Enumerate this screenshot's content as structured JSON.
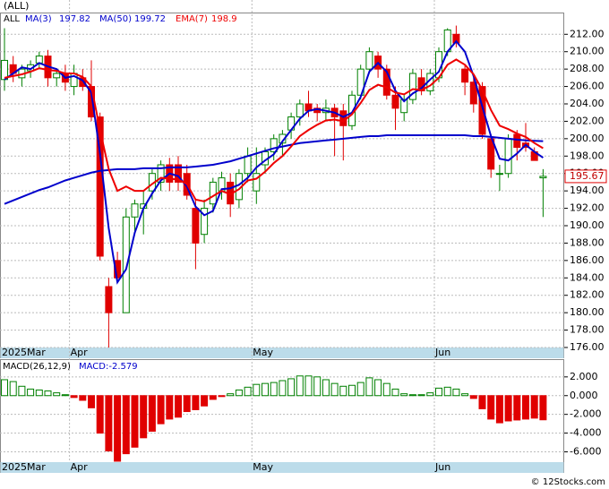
{
  "chart_data": [
    {
      "type": "candlestick",
      "title": "(ALL)",
      "symbol": "ALL",
      "categories": [
        "2025Mar",
        null,
        null,
        null,
        null,
        null,
        null,
        null,
        "Apr",
        null,
        null,
        null,
        null,
        null,
        null,
        null,
        null,
        null,
        null,
        null,
        null,
        null,
        null,
        null,
        null,
        null,
        null,
        null,
        null,
        "May",
        null,
        null,
        null,
        null,
        null,
        null,
        null,
        null,
        null,
        null,
        null,
        null,
        null,
        null,
        null,
        null,
        null,
        null,
        null,
        null,
        "Jun",
        null,
        null,
        null,
        null,
        null,
        null,
        null,
        null,
        null,
        null,
        null,
        null
      ],
      "open": [
        206.8,
        208.5,
        207,
        207.8,
        208.7,
        209.5,
        207,
        207.5,
        206,
        207,
        206,
        202.5,
        183,
        186,
        180,
        191,
        192,
        194,
        195,
        197,
        197,
        196,
        192,
        189,
        192.5,
        194,
        195,
        193,
        196,
        194,
        197,
        198.5,
        199.5,
        201,
        202.5,
        204,
        203.5,
        203,
        203.5,
        203.2,
        201.5,
        205,
        208,
        209.5,
        208,
        205,
        203,
        204.5,
        207,
        205.5,
        207,
        210,
        212,
        208,
        206.5,
        206,
        200,
        196,
        196,
        200.5,
        199.5,
        198.5,
        195.5
      ],
      "high": [
        212.7,
        209.5,
        208.5,
        209,
        210,
        210.2,
        208,
        208.5,
        208.5,
        208,
        209,
        203,
        184,
        187,
        192,
        193,
        194,
        196.5,
        197.5,
        197.8,
        198,
        197,
        193,
        193,
        195.5,
        196.2,
        196,
        196.5,
        199,
        199,
        199,
        200.5,
        201,
        203,
        204.5,
        205.5,
        204,
        204.5,
        204,
        204,
        205.5,
        208.5,
        210.5,
        210,
        208.5,
        206,
        205,
        208,
        208,
        208,
        210.5,
        212.7,
        213,
        208.5,
        207,
        206.5,
        200.5,
        197,
        200.5,
        201,
        201.8,
        199,
        196.5
      ],
      "low": [
        205.5,
        206.5,
        206,
        207,
        208,
        206,
        206,
        205.5,
        205,
        205.5,
        202,
        186,
        176,
        183.5,
        180,
        189,
        189,
        193,
        194,
        194,
        194,
        193,
        185,
        188,
        191.5,
        193,
        191,
        192,
        195,
        192.5,
        196,
        197.5,
        198,
        200,
        201.5,
        202.5,
        202,
        202,
        198,
        197.5,
        201,
        204.5,
        207.5,
        207,
        204.5,
        201,
        202,
        204,
        205,
        205,
        206.5,
        209.5,
        210.5,
        205,
        203,
        200,
        195.5,
        194,
        195.5,
        197.5,
        198.5,
        197.5,
        191
      ],
      "close": [
        209,
        207.5,
        208,
        208.5,
        209.5,
        207,
        207.5,
        206.5,
        207.5,
        206,
        202.5,
        186.5,
        180,
        184,
        191,
        192.5,
        192.5,
        196,
        197,
        195,
        195,
        193.5,
        188,
        192,
        195,
        195.5,
        192.5,
        196,
        198,
        196,
        198.5,
        200,
        200.5,
        202.5,
        204,
        203.2,
        203,
        203.5,
        202.5,
        201.5,
        205,
        208,
        210,
        208,
        205,
        203.5,
        204.5,
        207.5,
        205.5,
        207.5,
        210,
        212.5,
        211,
        206.5,
        204,
        200.5,
        196.5,
        196,
        200,
        199,
        199,
        197.5,
        195.67
      ],
      "up_color": "#008000",
      "down_color": "#e00000",
      "series": [
        {
          "name": "MA(3)",
          "color": "#0000cc",
          "last": 197.82,
          "values": [
            206.8,
            207.5,
            208.2,
            208,
            208.7,
            208.3,
            208,
            207,
            207.2,
            206.7,
            205.3,
            198.3,
            189.7,
            183.5,
            185,
            189.2,
            192,
            193.7,
            195.2,
            196,
            195.7,
            194.5,
            192.2,
            191.2,
            191.7,
            194.2,
            194.3,
            194.7,
            195.5,
            196.7,
            197.5,
            198.2,
            199.7,
            201,
            202.3,
            203.2,
            203.4,
            203.2,
            203,
            202.5,
            203,
            204.8,
            207.7,
            208.7,
            207.7,
            205.5,
            204.3,
            205.2,
            205.8,
            206.8,
            207.7,
            210,
            211.2,
            210,
            207.2,
            203.7,
            200.3,
            197.7,
            197.5,
            198.3,
            199.3,
            198.5,
            197.82
          ]
        },
        {
          "name": "MA(50)",
          "color": "#0000cc",
          "last": 199.72,
          "values": [
            192.5,
            192.9,
            193.3,
            193.7,
            194.1,
            194.4,
            194.8,
            195.2,
            195.5,
            195.8,
            196.1,
            196.3,
            196.4,
            196.5,
            196.5,
            196.5,
            196.6,
            196.6,
            196.6,
            196.7,
            196.7,
            196.7,
            196.8,
            196.9,
            197.0,
            197.2,
            197.4,
            197.7,
            198.0,
            198.3,
            198.6,
            198.9,
            199.1,
            199.3,
            199.5,
            199.6,
            199.7,
            199.8,
            199.9,
            200.0,
            200.1,
            200.2,
            200.3,
            200.3,
            200.4,
            200.4,
            200.4,
            200.4,
            200.4,
            200.4,
            200.4,
            200.4,
            200.4,
            200.4,
            200.3,
            200.3,
            200.2,
            200.1,
            200.0,
            199.9,
            199.8,
            199.75,
            199.72
          ]
        },
        {
          "name": "EMA(7)",
          "color": "#ee0000",
          "last": 198.9,
          "values": [
            207,
            207.2,
            207.4,
            207.7,
            208.1,
            207.9,
            207.8,
            207.5,
            207.5,
            207.1,
            206,
            201,
            196.5,
            194,
            194.5,
            194,
            194,
            194.8,
            195.5,
            195.4,
            195.3,
            194.8,
            193,
            192.8,
            193.4,
            194,
            193.6,
            194.2,
            195.2,
            195.4,
            196.2,
            197.2,
            198,
            199.1,
            200.3,
            201,
            201.6,
            202.1,
            202.2,
            202,
            202.8,
            204.1,
            205.6,
            206.2,
            205.9,
            205.3,
            205.1,
            205.7,
            205.6,
            206.1,
            207,
            208.5,
            209.1,
            208.5,
            207.4,
            205.6,
            203.3,
            201.5,
            201.1,
            200.6,
            200.2,
            199.5,
            198.9
          ]
        }
      ],
      "ylim": [
        176,
        214.5
      ],
      "yticks": [
        {
          "value": 176,
          "label": "176.00"
        },
        {
          "value": 178,
          "label": "178.00"
        },
        {
          "value": 180,
          "label": "180.00"
        },
        {
          "value": 182,
          "label": "182.00"
        },
        {
          "value": 184,
          "label": "184.00"
        },
        {
          "value": 186,
          "label": "186.00"
        },
        {
          "value": 188,
          "label": "188.00"
        },
        {
          "value": 190,
          "label": "190.00"
        },
        {
          "value": 192,
          "label": "192.00"
        },
        {
          "value": 194,
          "label": "194.00"
        },
        {
          "value": 196,
          "label": "196.00"
        },
        {
          "value": 198,
          "label": "198.00"
        },
        {
          "value": 200,
          "label": "200.00"
        },
        {
          "value": 202,
          "label": "202.00"
        },
        {
          "value": 204,
          "label": "204.00"
        },
        {
          "value": 206,
          "label": "206.00"
        },
        {
          "value": 208,
          "label": "208.00"
        },
        {
          "value": 210,
          "label": "210.00"
        },
        {
          "value": 212,
          "label": "212.00"
        }
      ],
      "grid": true
    },
    {
      "type": "bar",
      "title": "MACD(26,12,9)",
      "current_label": "MACD:-2.579",
      "categories": [
        "2025Mar",
        null,
        null,
        null,
        null,
        null,
        null,
        null,
        "Apr",
        null,
        null,
        null,
        null,
        null,
        null,
        null,
        null,
        null,
        null,
        null,
        null,
        null,
        null,
        null,
        null,
        null,
        null,
        null,
        null,
        "May",
        null,
        null,
        null,
        null,
        null,
        null,
        null,
        null,
        null,
        null,
        null,
        null,
        null,
        null,
        null,
        null,
        null,
        null,
        null,
        null,
        "Jun",
        null,
        null,
        null,
        null,
        null,
        null,
        null,
        null,
        null,
        null,
        null,
        null
      ],
      "values": [
        1.7,
        1.5,
        1.0,
        0.7,
        0.6,
        0.5,
        0.3,
        0.1,
        -0.2,
        -0.5,
        -1.3,
        -4.0,
        -5.9,
        -7.0,
        -6.2,
        -5.5,
        -4.5,
        -3.8,
        -3.0,
        -2.5,
        -2.3,
        -1.7,
        -1.5,
        -1.1,
        -0.4,
        -0.1,
        0.2,
        0.6,
        0.9,
        1.2,
        1.3,
        1.4,
        1.6,
        1.8,
        2.1,
        2.1,
        2.0,
        1.7,
        1.3,
        1.0,
        1.1,
        1.4,
        1.9,
        1.7,
        1.3,
        0.7,
        0.2,
        0.1,
        0.1,
        0.3,
        0.8,
        0.9,
        0.7,
        0.2,
        -0.3,
        -1.4,
        -2.5,
        -2.9,
        -2.7,
        -2.6,
        -2.5,
        -2.4,
        -2.579
      ],
      "up_color": "#008000",
      "down_color": "#e00000",
      "ylim": [
        -7.05,
        3.8
      ],
      "yticks": [
        {
          "value": -6,
          "label": "-6.000"
        },
        {
          "value": -4,
          "label": "-4.000"
        },
        {
          "value": -2,
          "label": "-2.000"
        },
        {
          "value": 0,
          "label": "0.000"
        },
        {
          "value": 2,
          "label": "2.000"
        }
      ],
      "grid": true
    },
    {
      "type": "footer",
      "text": "© 12Stocks.com"
    }
  ]
}
